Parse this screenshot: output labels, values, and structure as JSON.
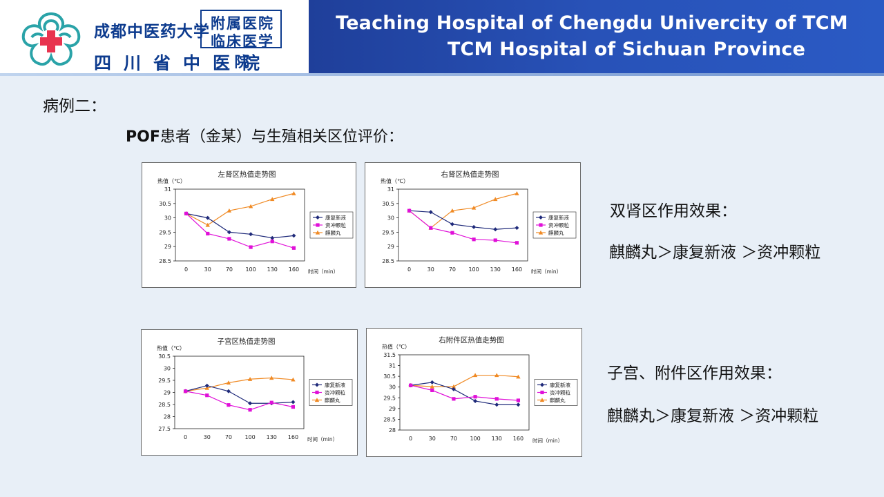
{
  "header": {
    "logo_cn_main": "成都中医药大学",
    "logo_box_line1": "附属医院",
    "logo_box_line2": "临床医学院",
    "logo_cn_sub": "四川省中医院",
    "title_en_line1": "Teaching Hospital of Chengdu Univercity of TCM",
    "title_en_line2": "TCM Hospital of Sichuan Province",
    "band_color": "#2852b8",
    "logo_red": "#e8344f",
    "logo_teal": "#2aa3a8"
  },
  "content": {
    "case_title": "病例二：",
    "subtitle_en": "POF",
    "subtitle_cn": "患者（金某）与生殖相关区位评价：",
    "effect1_head": "双肾区作用效果：",
    "effect1_rank": "麒麟丸＞康复新液 ＞资冲颗粒",
    "effect2_head": "子宫、附件区作用效果：",
    "effect2_rank": "麒麟丸＞康复新液 ＞资冲颗粒"
  },
  "chart_data": [
    {
      "type": "line",
      "title": "左肾区热值走势图",
      "ylabel": "热值（℃）",
      "xlabel": "时间（min）",
      "x": [
        "0",
        "30",
        "70",
        "100",
        "130",
        "160"
      ],
      "ylim": [
        28.5,
        31
      ],
      "yticks": [
        "28.5",
        "29",
        "29.5",
        "30",
        "30.5",
        "31"
      ],
      "legend": "right",
      "series": [
        {
          "name": "康复新液",
          "color": "#1f2a7a",
          "marker": "diamond",
          "values": [
            30.15,
            30.0,
            29.5,
            29.43,
            29.3,
            29.38
          ]
        },
        {
          "name": "资冲颗粒",
          "color": "#e010d8",
          "marker": "square",
          "values": [
            30.15,
            29.45,
            29.27,
            28.98,
            29.18,
            28.95
          ]
        },
        {
          "name": "麒麟丸",
          "color": "#f08a24",
          "marker": "triangle",
          "values": [
            30.15,
            29.75,
            30.25,
            30.4,
            30.65,
            30.85
          ]
        }
      ]
    },
    {
      "type": "line",
      "title": "右肾区热值走势图",
      "ylabel": "热值（℃）",
      "xlabel": "时间（min）",
      "x": [
        "0",
        "30",
        "70",
        "100",
        "130",
        "160"
      ],
      "ylim": [
        28.5,
        31
      ],
      "yticks": [
        "28.5",
        "29",
        "29.5",
        "30",
        "30.5",
        "31"
      ],
      "legend": "right",
      "series": [
        {
          "name": "康复新液",
          "color": "#1f2a7a",
          "marker": "diamond",
          "values": [
            30.25,
            30.2,
            29.78,
            29.68,
            29.6,
            29.65
          ]
        },
        {
          "name": "资冲颗粒",
          "color": "#e010d8",
          "marker": "square",
          "values": [
            30.25,
            29.65,
            29.48,
            29.25,
            29.22,
            29.13
          ]
        },
        {
          "name": "麒麟丸",
          "color": "#f08a24",
          "marker": "triangle",
          "values": [
            30.25,
            29.65,
            30.25,
            30.35,
            30.65,
            30.85
          ]
        }
      ]
    },
    {
      "type": "line",
      "title": "子宫区热值走势图",
      "ylabel": "热值（℃）",
      "xlabel": "时间（min）",
      "x": [
        "0",
        "30",
        "70",
        "100",
        "130",
        "160"
      ],
      "ylim": [
        27.5,
        30.5
      ],
      "yticks": [
        "27.5",
        "28",
        "28.5",
        "29",
        "29.5",
        "30",
        "30.5"
      ],
      "legend": "right",
      "series": [
        {
          "name": "康复新液",
          "color": "#1f2a7a",
          "marker": "diamond",
          "values": [
            29.05,
            29.28,
            29.05,
            28.55,
            28.55,
            28.6
          ]
        },
        {
          "name": "资冲颗粒",
          "color": "#e010d8",
          "marker": "square",
          "values": [
            29.05,
            28.88,
            28.48,
            28.28,
            28.58,
            28.4
          ]
        },
        {
          "name": "麒麟丸",
          "color": "#f08a24",
          "marker": "triangle",
          "values": [
            29.05,
            29.18,
            29.4,
            29.55,
            29.6,
            29.53
          ]
        }
      ]
    },
    {
      "type": "line",
      "title": "右附件区热值走势图",
      "ylabel": "热值（℃）",
      "xlabel": "时间（min）",
      "x": [
        "0",
        "30",
        "70",
        "100",
        "130",
        "160"
      ],
      "ylim": [
        28,
        31.5
      ],
      "yticks": [
        "28",
        "28.5",
        "29",
        "29.5",
        "30",
        "30.5",
        "31",
        "31.5"
      ],
      "legend": "right",
      "series": [
        {
          "name": "康复新液",
          "color": "#1f2a7a",
          "marker": "diamond",
          "values": [
            30.08,
            30.22,
            29.9,
            29.35,
            29.18,
            29.18
          ]
        },
        {
          "name": "资冲颗粒",
          "color": "#e010d8",
          "marker": "square",
          "values": [
            30.08,
            29.85,
            29.45,
            29.55,
            29.45,
            29.38
          ]
        },
        {
          "name": "麒麟丸",
          "color": "#f08a24",
          "marker": "triangle",
          "values": [
            30.08,
            30.02,
            30.02,
            30.55,
            30.55,
            30.48
          ]
        }
      ]
    }
  ]
}
